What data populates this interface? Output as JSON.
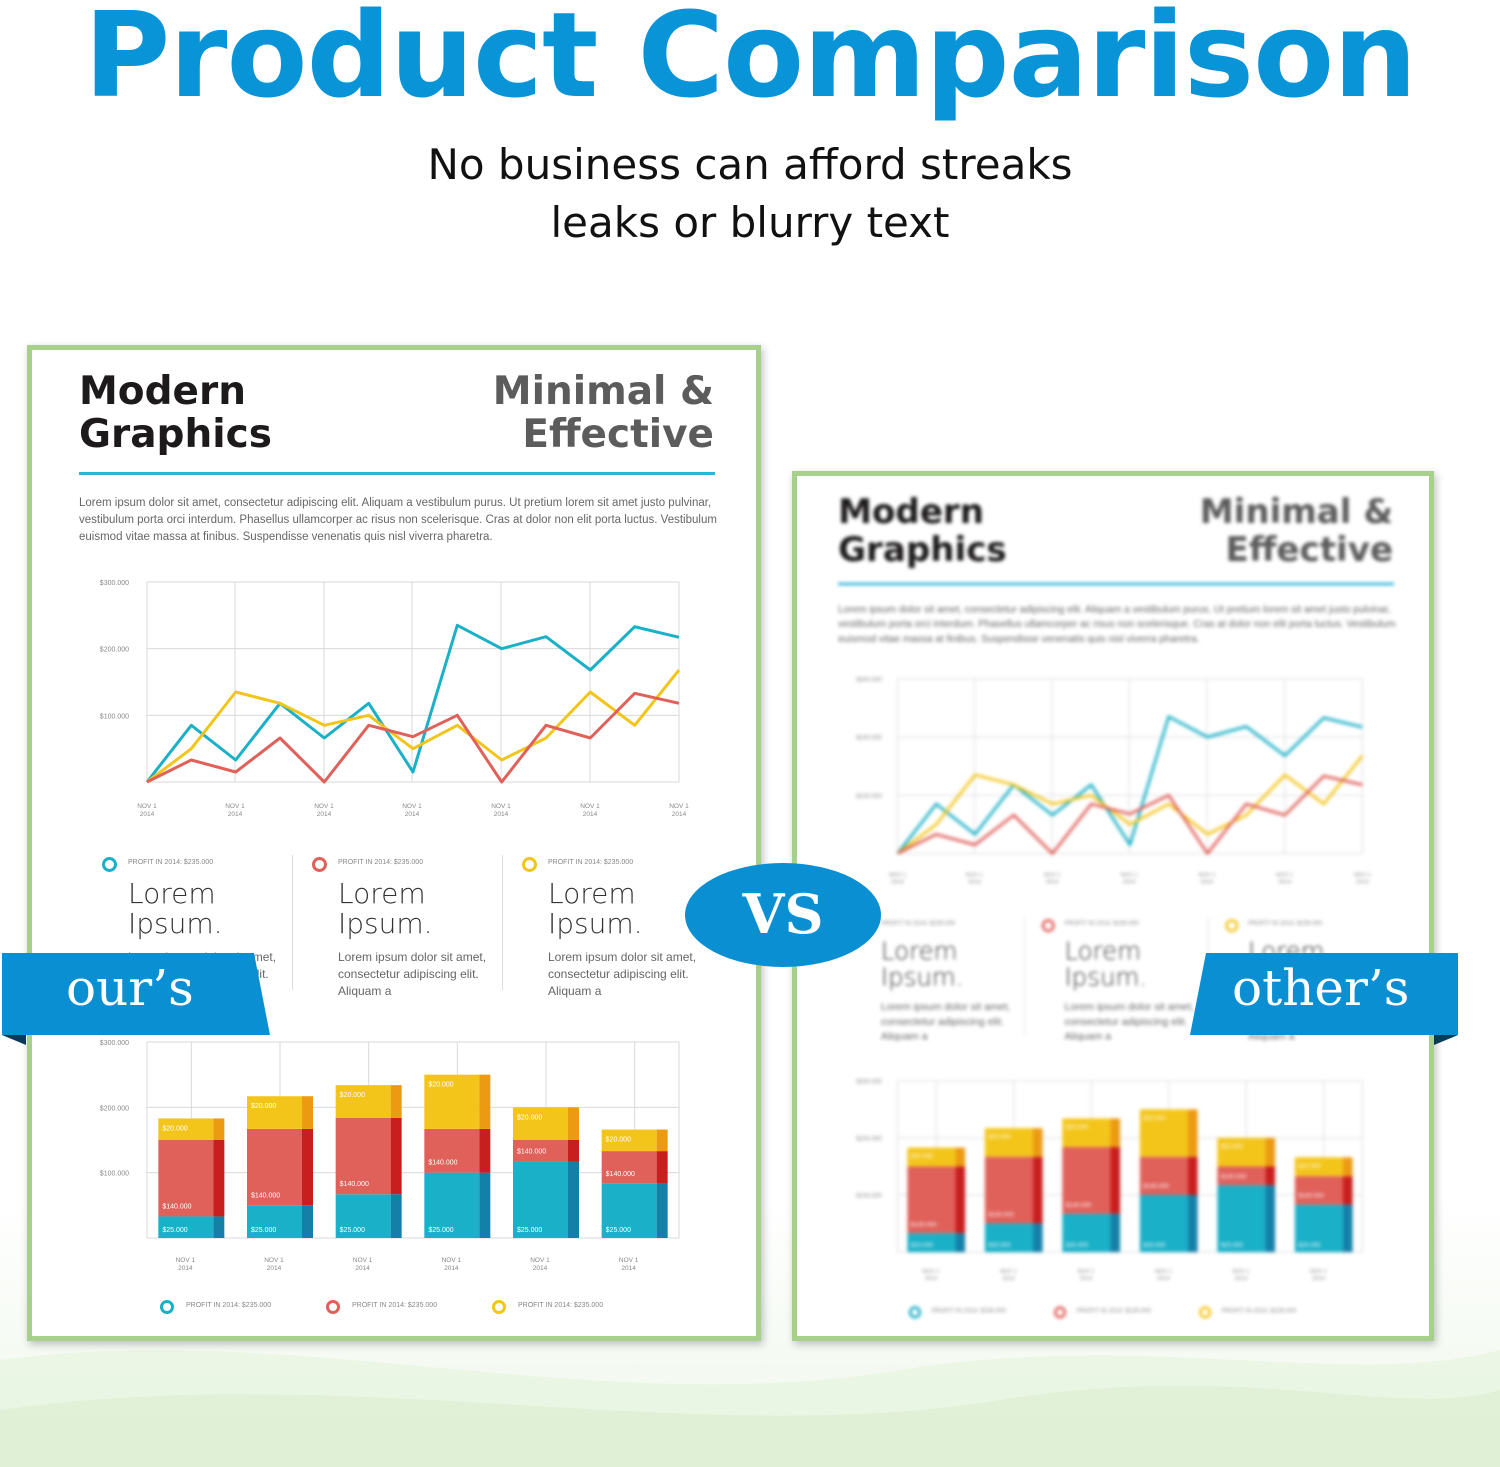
{
  "header": {
    "title": "Product Comparison",
    "subtitle_line1": "No business can afford streaks",
    "subtitle_line2": "leaks or blurry text"
  },
  "colors": {
    "title": "#0a94d8",
    "banner": "#0a8fd3",
    "sheet_border": "#a8d08d",
    "teal": "#1ab0c7",
    "yellow": "#f3c51a",
    "red": "#e0605a"
  },
  "sheet": {
    "heading_left_1": "Modern",
    "heading_left_2": "Graphics",
    "heading_right_1": "Minimal &",
    "heading_right_2": "Effective",
    "paragraph": "Lorem ipsum dolor sit amet, consectetur adipiscing elit. Aliquam a vestibulum purus. Ut pretium lorem sit amet justo pulvinar, vestibulum porta orci interdum. Phasellus ullamcorper ac risus non scelerisque. Cras at dolor non elit porta luctus. Vestibulum euismod vitae massa at finibus. Suspendisse venenatis quis nisl viverra pharetra.",
    "stats": [
      {
        "tiny": "PROFIT IN 2014: $235.000",
        "big1": "Lorem",
        "big2": "Ipsum.",
        "text": "Lorem ipsum dolor sit amet, consectetur adipiscing elit. Aliquam a"
      },
      {
        "tiny": "PROFIT IN 2014: $235.000",
        "big1": "Lorem",
        "big2": "Ipsum.",
        "text": "Lorem ipsum dolor sit amet, consectetur adipiscing elit. Aliquam a"
      },
      {
        "tiny": "PROFIT IN 2014: $235.000",
        "big1": "Lorem",
        "big2": "Ipsum.",
        "text": "Lorem ipsum dolor sit amet, consectetur adipiscing elit. Aliquam a"
      }
    ],
    "legend": [
      "PROFIT IN 2014: $235.000",
      "PROFIT IN 2014: $235.000",
      "PROFIT IN 2014: $235.000"
    ]
  },
  "line_chart": {
    "type": "line",
    "yticks": [
      "$300.000",
      "$200.000",
      "$100.000"
    ],
    "ylim": [
      0,
      300000
    ],
    "x_labels": [
      [
        "NOV 1",
        "2014"
      ],
      [
        "NOV 1",
        "2014"
      ],
      [
        "NOV 1",
        "2014"
      ],
      [
        "NOV 1",
        "2014"
      ],
      [
        "NOV 1",
        "2014"
      ],
      [
        "NOV 1",
        "2014"
      ],
      [
        "NOV 1",
        "2014"
      ]
    ],
    "series": [
      {
        "color": "teal",
        "values": [
          0,
          85000,
          33000,
          118000,
          66000,
          118000,
          15000,
          235000,
          200000,
          218000,
          168000,
          233000,
          217000
        ]
      },
      {
        "color": "yellow",
        "values": [
          0,
          50000,
          135000,
          118000,
          85000,
          100000,
          50000,
          85000,
          33000,
          66000,
          135000,
          85000,
          168000
        ]
      },
      {
        "color": "red",
        "values": [
          0,
          33000,
          15000,
          66000,
          0,
          85000,
          68000,
          100000,
          0,
          85000,
          66000,
          133000,
          118000
        ]
      }
    ]
  },
  "bar_chart": {
    "type": "bar",
    "yticks": [
      "$300.000",
      "$200.000",
      "$100.000"
    ],
    "ylim": [
      0,
      300000
    ],
    "x_labels": [
      [
        "NOV 1",
        "2014"
      ],
      [
        "NOV 1",
        "2014"
      ],
      [
        "NOV 1",
        "2014"
      ],
      [
        "NOV 1",
        "2014"
      ],
      [
        "NOV 1",
        "2014"
      ],
      [
        "NOV 1",
        "2014"
      ]
    ],
    "stacks": [
      {
        "teal": 33000,
        "red": 117000,
        "yellow": 33000,
        "labels": [
          "$25.000",
          "$140.000",
          "$20.000"
        ]
      },
      {
        "teal": 50000,
        "red": 117000,
        "yellow": 50000,
        "labels": [
          "$25.000",
          "$140.000",
          "$20.000"
        ]
      },
      {
        "teal": 67000,
        "red": 117000,
        "yellow": 50000,
        "labels": [
          "$25.000",
          "$140.000",
          "$20.000"
        ]
      },
      {
        "teal": 100000,
        "red": 67000,
        "yellow": 83000,
        "labels": [
          "$25.000",
          "$140.000",
          "$20.000"
        ]
      },
      {
        "teal": 117000,
        "red": 33000,
        "yellow": 50000,
        "labels": [
          "$25.000",
          "$140.000",
          "$20.000"
        ]
      },
      {
        "teal": 83000,
        "red": 50000,
        "yellow": 33000,
        "labels": [
          "$25.000",
          "$140.000",
          "$20.000"
        ]
      }
    ]
  },
  "banners": {
    "ours": "our’s",
    "others": "other’s",
    "vs": "VS"
  }
}
